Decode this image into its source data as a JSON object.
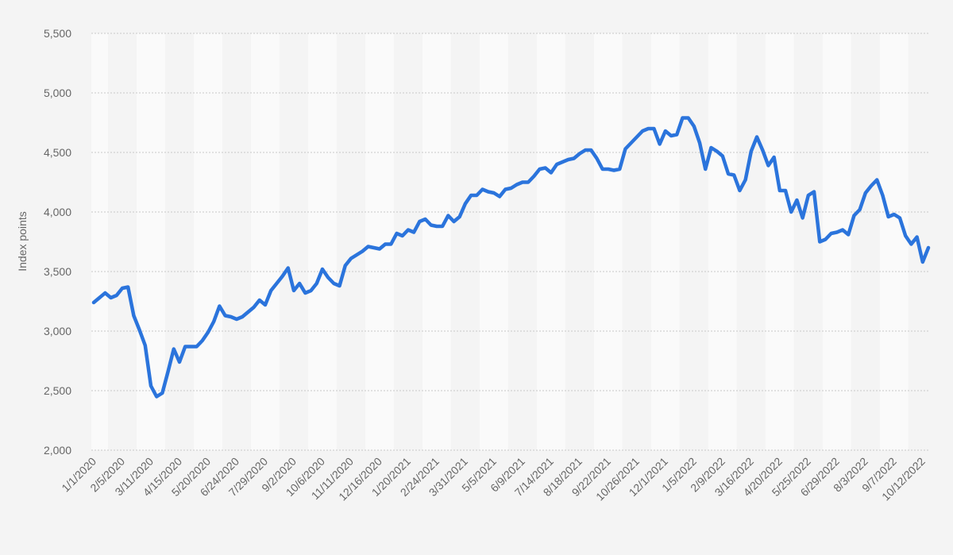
{
  "chart_data": {
    "type": "line",
    "y_label": "Index points",
    "color": "#2b74dc",
    "grid": true,
    "ylim": [
      2000,
      5500
    ],
    "yticks": [
      {
        "value": 2000,
        "label": "2,000"
      },
      {
        "value": 2500,
        "label": "2,500"
      },
      {
        "value": 3000,
        "label": "3,000"
      },
      {
        "value": 3500,
        "label": "3,500"
      },
      {
        "value": 4000,
        "label": "4,000"
      },
      {
        "value": 4500,
        "label": "4,500"
      },
      {
        "value": 5000,
        "label": "5,000"
      },
      {
        "value": 5500,
        "label": "5,500"
      }
    ],
    "categories": [
      "1/1/2020",
      null,
      null,
      null,
      null,
      "2/5/2020",
      null,
      null,
      null,
      null,
      "3/11/2020",
      null,
      null,
      null,
      null,
      "4/15/2020",
      null,
      null,
      null,
      null,
      "5/20/2020",
      null,
      null,
      null,
      null,
      "6/24/2020",
      null,
      null,
      null,
      null,
      "7/29/2020",
      null,
      null,
      null,
      null,
      "9/2/2020",
      null,
      null,
      null,
      null,
      "10/6/2020",
      null,
      null,
      null,
      null,
      "11/11/2020",
      null,
      null,
      null,
      null,
      "12/16/2020",
      null,
      null,
      null,
      null,
      "1/20/2021",
      null,
      null,
      null,
      null,
      "2/24/2021",
      null,
      null,
      null,
      null,
      "3/31/2021",
      null,
      null,
      null,
      null,
      "5/5/2021",
      null,
      null,
      null,
      null,
      "6/9/2021",
      null,
      null,
      null,
      null,
      "7/14/2021",
      null,
      null,
      null,
      null,
      "8/18/2021",
      null,
      null,
      null,
      null,
      "9/22/2021",
      null,
      null,
      null,
      null,
      "10/26/2021",
      null,
      null,
      null,
      null,
      "12/1/2021",
      null,
      null,
      null,
      null,
      "1/5/2022",
      null,
      null,
      null,
      null,
      "2/9/2022",
      null,
      null,
      null,
      null,
      "3/16/2022",
      null,
      null,
      null,
      null,
      "4/20/2022",
      null,
      null,
      null,
      null,
      "5/25/2022",
      null,
      null,
      null,
      null,
      "6/29/2022",
      null,
      null,
      null,
      null,
      "8/3/2022",
      null,
      null,
      null,
      null,
      "9/7/2022",
      null,
      null,
      null,
      null,
      "10/12/2022",
      null
    ],
    "values": [
      3240,
      3280,
      3320,
      3280,
      3300,
      3360,
      3370,
      3130,
      3010,
      2880,
      2540,
      2450,
      2480,
      2660,
      2850,
      2740,
      2870,
      2870,
      2870,
      2920,
      2990,
      3080,
      3210,
      3130,
      3120,
      3100,
      3120,
      3160,
      3200,
      3260,
      3220,
      3340,
      3400,
      3460,
      3530,
      3340,
      3400,
      3320,
      3340,
      3400,
      3520,
      3450,
      3400,
      3380,
      3550,
      3610,
      3640,
      3670,
      3710,
      3700,
      3690,
      3730,
      3730,
      3820,
      3800,
      3850,
      3830,
      3920,
      3940,
      3890,
      3880,
      3880,
      3970,
      3920,
      3960,
      4070,
      4140,
      4140,
      4190,
      4170,
      4160,
      4130,
      4190,
      4200,
      4230,
      4250,
      4250,
      4300,
      4360,
      4370,
      4330,
      4400,
      4420,
      4440,
      4450,
      4490,
      4520,
      4520,
      4450,
      4360,
      4360,
      4350,
      4360,
      4530,
      4580,
      4630,
      4680,
      4700,
      4700,
      4570,
      4680,
      4640,
      4650,
      4790,
      4790,
      4720,
      4580,
      4360,
      4540,
      4510,
      4470,
      4320,
      4310,
      4180,
      4270,
      4510,
      4630,
      4520,
      4390,
      4460,
      4180,
      4180,
      4000,
      4100,
      3950,
      4140,
      4170,
      3750,
      3770,
      3820,
      3830,
      3850,
      3810,
      3970,
      4020,
      4160,
      4220,
      4270,
      4140,
      3960,
      3980,
      3950,
      3800,
      3730,
      3790,
      3580,
      3700
    ]
  }
}
